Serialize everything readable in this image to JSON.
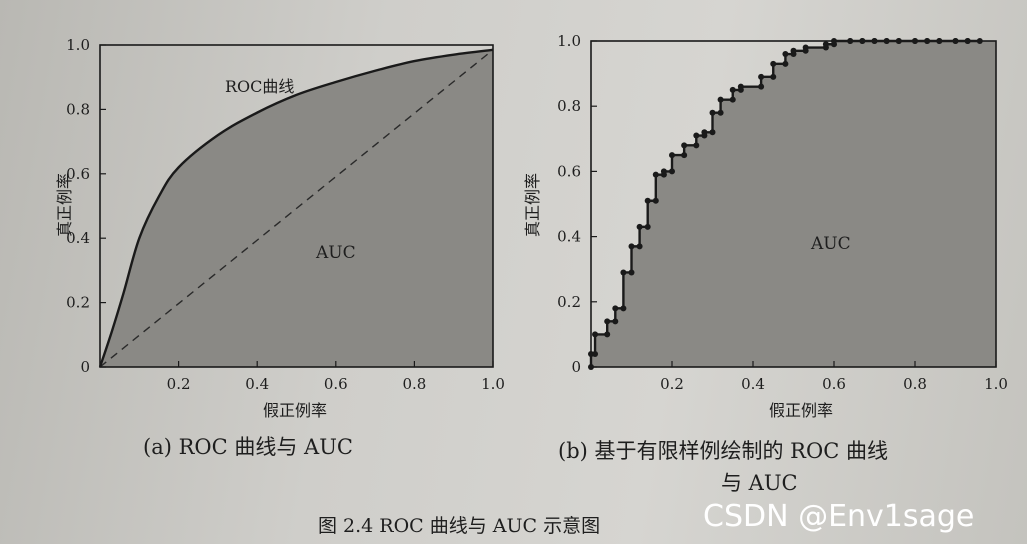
{
  "chart_data": [
    {
      "type": "area",
      "caption": "(a) ROC 曲线与 AUC",
      "xlabel": "假正例率",
      "ylabel": "真正例率",
      "xlim": [
        0,
        1.0
      ],
      "ylim": [
        0,
        1.0
      ],
      "xticks": [
        "0.2",
        "0.4",
        "0.6",
        "0.8",
        "1.0"
      ],
      "yticks": [
        "0",
        "0.2",
        "0.4",
        "0.6",
        "0.8",
        "1.0"
      ],
      "curve_label": "ROC曲线",
      "area_label": "AUC",
      "series": [
        {
          "x": [
            0,
            0.03,
            0.06,
            0.1,
            0.15,
            0.2,
            0.3,
            0.4,
            0.5,
            0.6,
            0.7,
            0.8,
            0.9,
            1.0
          ],
          "y": [
            0,
            0.11,
            0.23,
            0.4,
            0.53,
            0.62,
            0.72,
            0.79,
            0.845,
            0.885,
            0.92,
            0.95,
            0.97,
            0.985
          ]
        }
      ],
      "diagonal": {
        "x": [
          0,
          1.0
        ],
        "y": [
          0,
          0.985
        ]
      }
    },
    {
      "type": "line",
      "caption_lines": [
        "(b) 基于有限样例绘制的 ROC 曲线",
        "与 AUC"
      ],
      "xlabel": "假正例率",
      "ylabel": "真正例率",
      "xlim": [
        0,
        1.0
      ],
      "ylim": [
        0,
        1.0
      ],
      "xticks": [
        "0.2",
        "0.4",
        "0.6",
        "0.8",
        "1.0"
      ],
      "yticks": [
        "0",
        "0.2",
        "0.4",
        "0.6",
        "0.8",
        "1.0"
      ],
      "area_label": "AUC",
      "series": [
        {
          "x": [
            0,
            0,
            0.01,
            0.01,
            0.04,
            0.04,
            0.06,
            0.06,
            0.08,
            0.08,
            0.1,
            0.1,
            0.12,
            0.12,
            0.14,
            0.14,
            0.16,
            0.16,
            0.18,
            0.18,
            0.2,
            0.2,
            0.23,
            0.23,
            0.26,
            0.26,
            0.28,
            0.28,
            0.3,
            0.3,
            0.32,
            0.32,
            0.35,
            0.35,
            0.37,
            0.37,
            0.42,
            0.42,
            0.45,
            0.45,
            0.48,
            0.48,
            0.5,
            0.5,
            0.53,
            0.53,
            0.58,
            0.58,
            0.6,
            0.6,
            0.64,
            0.64,
            0.67,
            0.67,
            0.7,
            0.7,
            0.73,
            0.73,
            0.76,
            0.76,
            0.8,
            0.8,
            0.83,
            0.83,
            0.86,
            0.86,
            0.9,
            0.9,
            0.93,
            0.93,
            0.96
          ],
          "y": [
            0,
            0.04,
            0.04,
            0.1,
            0.1,
            0.14,
            0.14,
            0.18,
            0.18,
            0.29,
            0.29,
            0.37,
            0.37,
            0.43,
            0.43,
            0.51,
            0.51,
            0.59,
            0.59,
            0.6,
            0.6,
            0.65,
            0.65,
            0.68,
            0.68,
            0.71,
            0.71,
            0.72,
            0.72,
            0.78,
            0.78,
            0.82,
            0.82,
            0.85,
            0.85,
            0.86,
            0.86,
            0.89,
            0.89,
            0.93,
            0.93,
            0.96,
            0.96,
            0.97,
            0.97,
            0.98,
            0.98,
            0.99,
            0.99,
            1.0,
            1.0,
            1.0,
            1.0,
            1.0,
            1.0,
            1.0,
            1.0,
            1.0,
            1.0,
            1.0,
            1.0,
            1.0,
            1.0,
            1.0,
            1.0,
            1.0,
            1.0,
            1.0,
            1.0,
            1.0,
            1.0
          ]
        }
      ]
    }
  ],
  "figure_caption": "图 2.4   ROC 曲线与 AUC 示意图",
  "watermark": "CSDN @Env1sage"
}
